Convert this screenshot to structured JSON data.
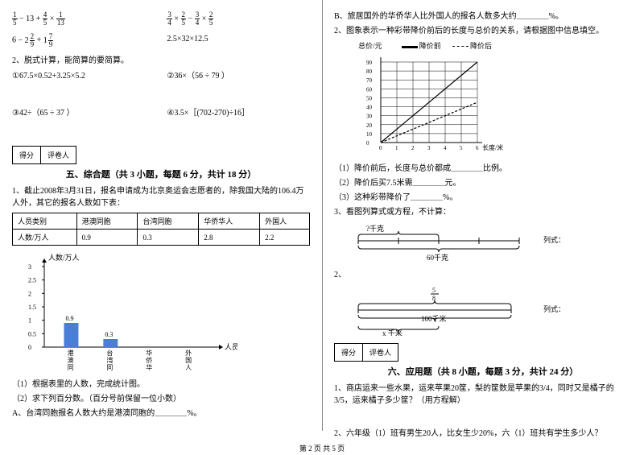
{
  "left": {
    "eq1a": {
      "a": "1",
      "b": "5",
      "op1": "− 13 +",
      "c": "4",
      "d": "5",
      "op2": "×",
      "e": "1",
      "f": "13"
    },
    "eq1b": {
      "a": "3",
      "b": "4",
      "op1": "×",
      "c": "2",
      "d": "5",
      "op2": "−",
      "e": "3",
      "f": "4",
      "op3": "×",
      "g": "2",
      "h": "5"
    },
    "eq2a": {
      "pre": "6 − ",
      "w1": "2",
      "a": "2",
      "b": "9",
      "mid": " + ",
      "w2": "1",
      "c": "7",
      "d": "9"
    },
    "eq2b": "2.5×32×12.5",
    "q2_title": "2、脱式计算，能简算的要简算。",
    "q2_items": [
      "①67.5×0.52+3.25×5.2",
      "②36×（56 ÷ 79 ）",
      "③42÷（65 ÷ 37 ）",
      "④3.5×［(702-270)÷16］"
    ],
    "score_labels": [
      "得分",
      "评卷人"
    ],
    "sec5_title": "五、综合题（共 3 小题，每题 6 分，共计 18 分）",
    "q5_1": "1、截止2008年3月31日，报名申请成为北京奥运会志愿者的，除我国大陆的106.4万人外，其它的报名人数如下表：",
    "table": {
      "headers": [
        "人员类别",
        "港澳同胞",
        "台湾同胞",
        "华侨华人",
        "外国人"
      ],
      "row_label": "人数/万人",
      "values": [
        "0.9",
        "0.3",
        "2.8",
        "2.2"
      ]
    },
    "chart": {
      "ylabel": "人数/万人",
      "yticks": [
        "3",
        "2.5",
        "2",
        "1.5",
        "1",
        "0.5",
        "0"
      ],
      "xlabel": "人员类别",
      "xcats": [
        "港澳同胞",
        "台湾同胞",
        "华侨华人",
        "外国人"
      ],
      "bars": [
        {
          "v": 0.9,
          "label": "0.9"
        },
        {
          "v": 0.3,
          "label": "0.3"
        }
      ],
      "bar_color": "#4a7fd6",
      "axis_color": "#000000",
      "grid_color": "#cccccc",
      "ymax": 3
    },
    "q5_1_sub": [
      "（1）根据表里的人数，完成统计图。",
      "（2）求下列百分数。（百分号前保留一位小数）",
      "A、台湾同胞报名人数大约是港澳同胞的＿＿＿＿%。"
    ]
  },
  "right": {
    "q5_1_b": "B、旅居国外的华侨华人比外国人的报名人数多大约＿＿＿＿%。",
    "q5_2": "2、图象表示一种彩带降价前后的长度与总价的关系，请根据图中信息填空。",
    "chart2": {
      "ylabel": "总价/元",
      "xlabel": "长度/米",
      "legend": [
        {
          "label": "降价前",
          "color": "#000000",
          "dash": false
        },
        {
          "label": "降价后",
          "color": "#000000",
          "dash": true
        }
      ],
      "yticks": [
        "90",
        "80",
        "70",
        "60",
        "50",
        "40",
        "30",
        "20",
        "10",
        "0"
      ],
      "xticks": [
        "0",
        "1",
        "2",
        "3",
        "4",
        "5",
        "6"
      ],
      "ymax": 90,
      "xmax": 6,
      "line1": {
        "color": "#000",
        "pts": [
          [
            0,
            0
          ],
          [
            6,
            90
          ]
        ]
      },
      "line2": {
        "color": "#000",
        "pts": [
          [
            0,
            0
          ],
          [
            6,
            45
          ]
        ]
      },
      "grid_color": "#000000",
      "bg_color": "#ffffff"
    },
    "q5_2_sub": [
      "（1）降价前后，长度与总价都成＿＿＿＿比例。",
      "（2）降价后买7.5米需＿＿＿＿元。",
      "（3）这种彩带降价了＿＿＿＿%。"
    ],
    "q5_3": "3、看图列算式或方程，不计算：",
    "brk1": {
      "left": "?千克",
      "total": "60千克",
      "side": "列式："
    },
    "brk2": {
      "top_n": "5",
      "top_d": "8",
      "total": "100千米",
      "bottom": "x 千米",
      "side": "列式："
    },
    "sec6_title": "六、应用题（共 8 小题，每题 3 分，共计 24 分）",
    "q6_1": "1、商店运来一些水果，运来苹果20筐，梨的筐数是苹果的3/4，同时又是橘子的3/5，运来橘子多少筐？（用方程解）",
    "q6_2": "2、六年级（1）班有男生20人，比女生少20%，六（1）班共有学生多少人？"
  },
  "footer": "第 2 页 共 5 页"
}
